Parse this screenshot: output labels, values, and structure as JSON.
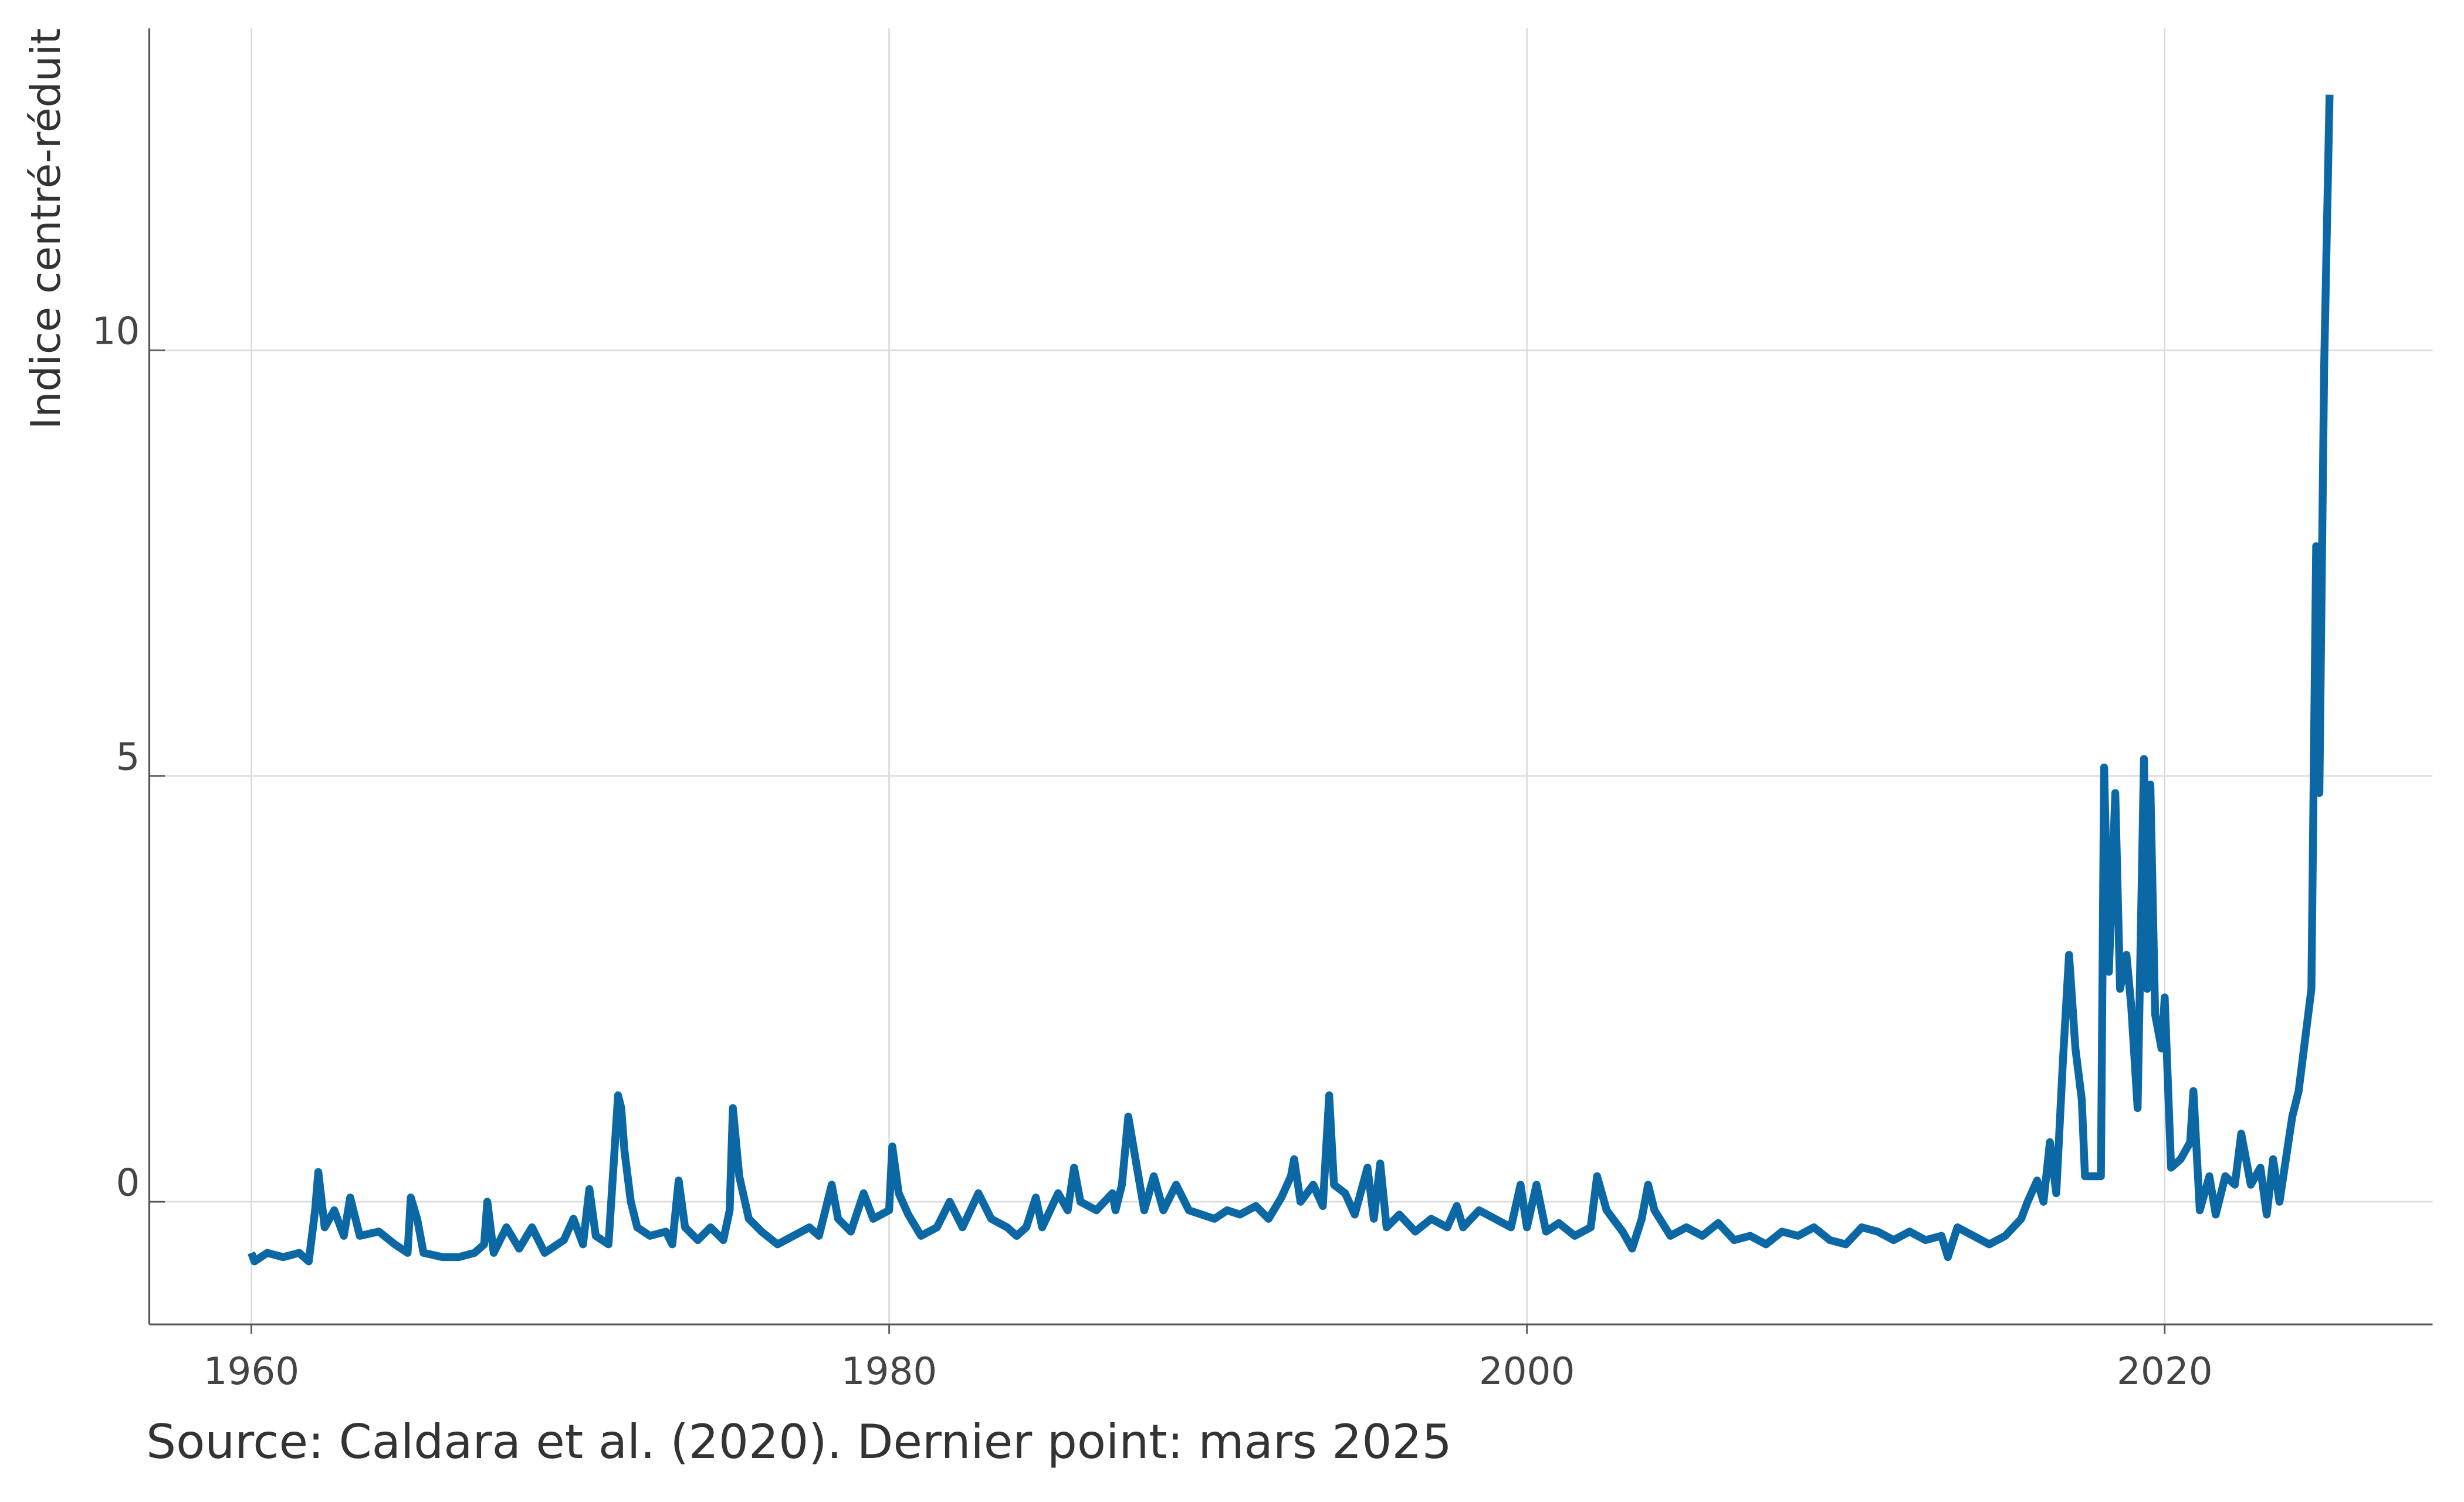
{
  "chart_data": {
    "type": "line",
    "y_label": "Indice centré-réduit",
    "source": "Source: Caldara et al. (2020). Dernier point: mars 2025",
    "xlim": [
      1956.8,
      2028.4
    ],
    "ylim": [
      -1.44,
      13.78
    ],
    "xticks": [
      1960,
      1980,
      2000,
      2020
    ],
    "yticks": [
      0,
      5,
      10
    ],
    "grid": true,
    "series": [
      {
        "name": null,
        "color": "#0b68a4",
        "x": [
          1960.0,
          1960.1,
          1960.5,
          1961.0,
          1961.5,
          1961.8,
          1962.0,
          1962.1,
          1962.3,
          1962.6,
          1962.9,
          1963.1,
          1963.4,
          1964.0,
          1964.5,
          1964.9,
          1965.0,
          1965.2,
          1965.4,
          1966.0,
          1966.5,
          1967.0,
          1967.3,
          1967.4,
          1967.6,
          1968.0,
          1968.4,
          1968.8,
          1969.2,
          1969.8,
          1970.1,
          1970.4,
          1970.6,
          1970.8,
          1971.2,
          1971.5,
          1971.6,
          1971.7,
          1971.9,
          1972.1,
          1972.5,
          1973.0,
          1973.2,
          1973.4,
          1973.6,
          1974.0,
          1974.4,
          1974.8,
          1975.0,
          1975.1,
          1975.3,
          1975.6,
          1976.0,
          1976.5,
          1977.0,
          1977.5,
          1977.8,
          1978.2,
          1978.4,
          1978.8,
          1979.2,
          1979.5,
          1980.0,
          1980.1,
          1980.3,
          1980.6,
          1981.0,
          1981.5,
          1981.9,
          1982.3,
          1982.8,
          1983.2,
          1983.7,
          1984.0,
          1984.3,
          1984.6,
          1984.8,
          1985.3,
          1985.6,
          1985.8,
          1986.0,
          1986.5,
          1987.0,
          1987.1,
          1987.3,
          1987.5,
          1988.0,
          1988.3,
          1988.6,
          1989.0,
          1989.4,
          1989.8,
          1990.2,
          1990.6,
          1991.0,
          1991.5,
          1991.9,
          1992.3,
          1992.6,
          1992.7,
          1992.9,
          1993.3,
          1993.6,
          1993.8,
          1993.95,
          1994.3,
          1994.6,
          1995.0,
          1995.2,
          1995.4,
          1995.6,
          1996.0,
          1996.5,
          1997.0,
          1997.5,
          1997.8,
          1998.0,
          1998.5,
          1999.0,
          1999.5,
          1999.8,
          2000.0,
          2000.3,
          2000.6,
          2001.0,
          2001.5,
          2002.0,
          2002.2,
          2002.5,
          2003.0,
          2003.3,
          2003.6,
          2003.8,
          2004.0,
          2004.5,
          2005.0,
          2005.5,
          2006.0,
          2006.5,
          2007.0,
          2007.5,
          2008.0,
          2008.5,
          2009.0,
          2009.5,
          2010.0,
          2010.5,
          2011.0,
          2011.5,
          2012.0,
          2012.5,
          2013.0,
          2013.2,
          2013.5,
          2014.0,
          2014.5,
          2015.0,
          2015.5,
          2015.7,
          2016.0,
          2016.2,
          2016.4,
          2016.6,
          2016.8,
          2017.0,
          2017.2,
          2017.4,
          2017.5,
          2017.8,
          2018.0,
          2018.1,
          2018.25,
          2018.45,
          2018.6,
          2018.8,
          2018.95,
          2019.15,
          2019.35,
          2019.45,
          2019.55,
          2019.7,
          2019.9,
          2020.0,
          2020.2,
          2020.5,
          2020.8,
          2020.9,
          2021.1,
          2021.4,
          2021.6,
          2021.9,
          2022.2,
          2022.4,
          2022.7,
          2023.0,
          2023.2,
          2023.4,
          2023.6,
          2023.8,
          2024.0,
          2024.2,
          2024.6,
          2024.75,
          2024.85,
          2025.0,
          2025.17
        ],
        "values": [
          -0.6,
          -0.7,
          -0.6,
          -0.65,
          -0.6,
          -0.7,
          -0.1,
          0.35,
          -0.3,
          -0.1,
          -0.4,
          0.05,
          -0.4,
          -0.35,
          -0.5,
          -0.6,
          0.05,
          -0.2,
          -0.6,
          -0.65,
          -0.65,
          -0.6,
          -0.5,
          0.0,
          -0.6,
          -0.3,
          -0.55,
          -0.3,
          -0.6,
          -0.45,
          -0.2,
          -0.5,
          0.15,
          -0.4,
          -0.5,
          1.25,
          1.1,
          0.6,
          0.0,
          -0.3,
          -0.4,
          -0.35,
          -0.5,
          0.25,
          -0.3,
          -0.45,
          -0.3,
          -0.45,
          -0.1,
          1.1,
          0.3,
          -0.2,
          -0.35,
          -0.5,
          -0.4,
          -0.3,
          -0.4,
          0.2,
          -0.2,
          -0.35,
          0.1,
          -0.2,
          -0.1,
          0.65,
          0.1,
          -0.15,
          -0.4,
          -0.3,
          0.0,
          -0.3,
          0.1,
          -0.2,
          -0.3,
          -0.4,
          -0.3,
          0.05,
          -0.3,
          0.1,
          -0.1,
          0.4,
          0.0,
          -0.1,
          0.1,
          -0.1,
          0.2,
          1.0,
          -0.1,
          0.3,
          -0.1,
          0.2,
          -0.1,
          -0.15,
          -0.2,
          -0.1,
          -0.15,
          -0.05,
          -0.2,
          0.05,
          0.3,
          0.5,
          0.0,
          0.2,
          -0.05,
          1.25,
          0.2,
          0.1,
          -0.15,
          0.4,
          -0.2,
          0.45,
          -0.3,
          -0.15,
          -0.35,
          -0.2,
          -0.3,
          -0.05,
          -0.3,
          -0.1,
          -0.2,
          -0.3,
          0.2,
          -0.3,
          0.2,
          -0.35,
          -0.25,
          -0.4,
          -0.3,
          0.3,
          -0.1,
          -0.35,
          -0.55,
          -0.2,
          0.2,
          -0.1,
          -0.4,
          -0.3,
          -0.4,
          -0.25,
          -0.45,
          -0.4,
          -0.5,
          -0.35,
          -0.4,
          -0.3,
          -0.45,
          -0.5,
          -0.3,
          -0.35,
          -0.45,
          -0.35,
          -0.45,
          -0.4,
          -0.65,
          -0.3,
          -0.4,
          -0.5,
          -0.4,
          -0.2,
          0.0,
          0.25,
          0.0,
          0.7,
          0.1,
          1.6,
          2.9,
          1.8,
          1.2,
          0.3,
          0.3,
          0.3,
          5.1,
          2.7,
          4.8,
          2.5,
          2.9,
          2.3,
          1.1,
          5.2,
          2.5,
          4.9,
          2.2,
          1.8,
          2.4,
          0.4,
          0.5,
          0.7,
          1.3,
          -0.1,
          0.3,
          -0.15,
          0.3,
          0.2,
          0.8,
          0.2,
          0.4,
          -0.15,
          0.5,
          0.0,
          0.5,
          1.0,
          1.3,
          2.5,
          7.7,
          4.8,
          9.8,
          13.0
        ]
      }
    ]
  }
}
